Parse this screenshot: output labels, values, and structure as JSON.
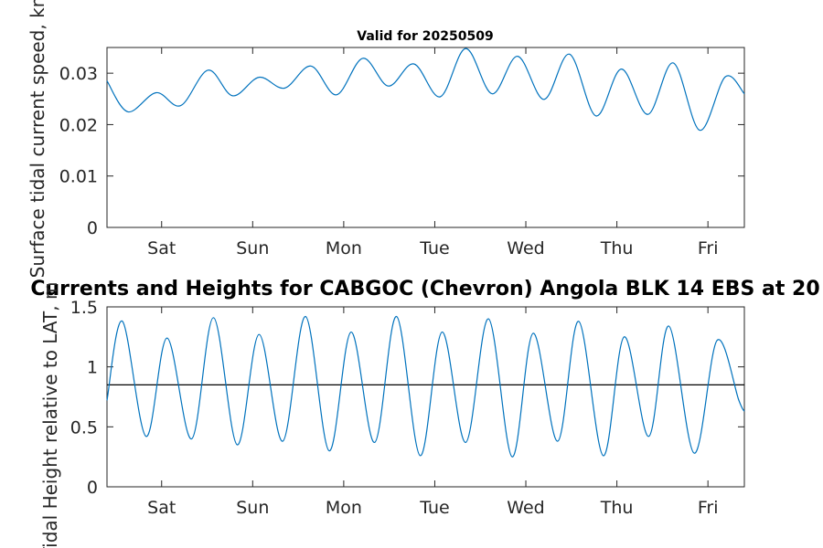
{
  "colors": {
    "series": "#0072BD",
    "reference": "#000000",
    "axes": "#262626"
  },
  "chart_data": [
    {
      "type": "line",
      "title": "Valid for 20250509",
      "xlabel": "",
      "ylabel": "Surface tidal current speed, kn",
      "x_categories": [
        "Sat",
        "Sun",
        "Mon",
        "Tue",
        "Wed",
        "Thu",
        "Fri"
      ],
      "xlim": [
        0,
        7
      ],
      "x_ticks": [
        0.6,
        1.6,
        2.6,
        3.6,
        4.6,
        5.6,
        6.6
      ],
      "ylim": [
        0,
        0.035
      ],
      "yticks": [
        0,
        0.01,
        0.02,
        0.03
      ],
      "ytick_labels": [
        "0",
        "0.01",
        "0.02",
        "0.03"
      ],
      "grid": false,
      "series": [
        {
          "x": [
            0,
            0.23,
            0.54,
            0.81,
            1.11,
            1.38,
            1.67,
            1.95,
            2.24,
            2.52,
            2.81,
            3.09,
            3.37,
            3.66,
            3.94,
            4.23,
            4.51,
            4.8,
            5.08,
            5.37,
            5.65,
            5.94,
            6.22,
            6.51,
            6.79,
            7.0
          ],
          "y": [
            0.0285,
            0.0225,
            0.0262,
            0.0237,
            0.0306,
            0.0256,
            0.0292,
            0.0271,
            0.0314,
            0.0258,
            0.0329,
            0.0275,
            0.0318,
            0.0254,
            0.0348,
            0.026,
            0.0333,
            0.0249,
            0.0337,
            0.0217,
            0.0308,
            0.022,
            0.032,
            0.0189,
            0.0293,
            0.026
          ]
        }
      ]
    },
    {
      "type": "line",
      "title": "Currents and Heights for CABGOC (Chevron)  Angola BLK 14  EBS at 20",
      "xlabel": "",
      "ylabel": "Tidal Height relative to LAT, m",
      "x_categories": [
        "Sat",
        "Sun",
        "Mon",
        "Tue",
        "Wed",
        "Thu",
        "Fri"
      ],
      "xlim": [
        0,
        7
      ],
      "x_ticks": [
        0.6,
        1.6,
        2.6,
        3.6,
        4.6,
        5.6,
        6.6
      ],
      "ylim": [
        0,
        1.5
      ],
      "yticks": [
        0,
        0.5,
        1,
        1.5
      ],
      "ytick_labels": [
        "0",
        "0.5",
        "1",
        "1.5"
      ],
      "grid": false,
      "reference_line": 0.85,
      "series": [
        {
          "x": [
            0,
            0.17,
            0.43,
            0.66,
            0.93,
            1.17,
            1.43,
            1.67,
            1.93,
            2.18,
            2.44,
            2.68,
            2.94,
            3.18,
            3.44,
            3.68,
            3.94,
            4.19,
            4.45,
            4.68,
            4.95,
            5.18,
            5.45,
            5.68,
            5.95,
            6.17,
            6.45,
            6.7,
            6.94,
            7.0
          ],
          "y": [
            0.72,
            1.38,
            0.42,
            1.24,
            0.4,
            1.41,
            0.35,
            1.27,
            0.38,
            1.42,
            0.3,
            1.29,
            0.37,
            1.42,
            0.26,
            1.29,
            0.37,
            1.4,
            0.25,
            1.28,
            0.38,
            1.38,
            0.26,
            1.25,
            0.42,
            1.34,
            0.28,
            1.22,
            0.72,
            0.63
          ]
        }
      ]
    }
  ]
}
